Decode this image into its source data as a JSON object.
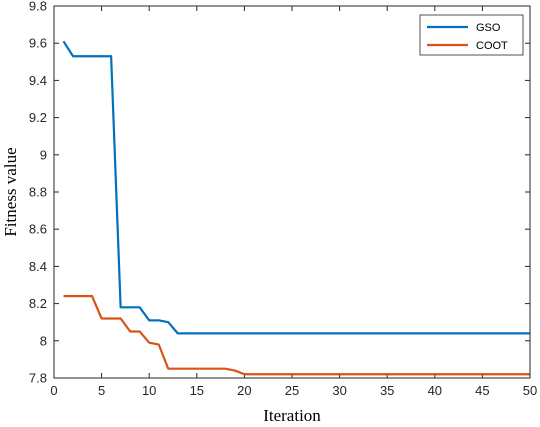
{
  "chart_data": {
    "type": "line",
    "title": "",
    "xlabel": "Iteration",
    "ylabel": "Fitness value",
    "xlim": [
      0,
      50
    ],
    "ylim": [
      7.8,
      9.8
    ],
    "xticks": [
      0,
      5,
      10,
      15,
      20,
      25,
      30,
      35,
      40,
      45,
      50
    ],
    "yticks": [
      7.8,
      8,
      8.2,
      8.4,
      8.6,
      8.8,
      9,
      9.2,
      9.4,
      9.6,
      9.8
    ],
    "xtick_labels": [
      "0",
      "5",
      "10",
      "15",
      "20",
      "25",
      "30",
      "35",
      "40",
      "45",
      "50"
    ],
    "ytick_labels": [
      "7.8",
      "8",
      "8.2",
      "8.4",
      "8.6",
      "8.8",
      "9",
      "9.2",
      "9.4",
      "9.6",
      "9.8"
    ],
    "grid": false,
    "legend_position": "top-right",
    "series": [
      {
        "name": "GSO",
        "color": "#0072BD",
        "x": [
          1,
          2,
          3,
          4,
          5,
          6,
          7,
          8,
          9,
          10,
          11,
          12,
          13,
          14,
          15,
          16,
          17,
          18,
          19,
          20,
          21,
          22,
          23,
          24,
          25,
          26,
          27,
          28,
          29,
          30,
          31,
          32,
          33,
          34,
          35,
          36,
          37,
          38,
          39,
          40,
          41,
          42,
          43,
          44,
          45,
          46,
          47,
          48,
          49,
          50
        ],
        "values": [
          9.61,
          9.53,
          9.53,
          9.53,
          9.53,
          9.53,
          8.18,
          8.18,
          8.18,
          8.11,
          8.11,
          8.1,
          8.04,
          8.04,
          8.04,
          8.04,
          8.04,
          8.04,
          8.04,
          8.04,
          8.04,
          8.04,
          8.04,
          8.04,
          8.04,
          8.04,
          8.04,
          8.04,
          8.04,
          8.04,
          8.04,
          8.04,
          8.04,
          8.04,
          8.04,
          8.04,
          8.04,
          8.04,
          8.04,
          8.04,
          8.04,
          8.04,
          8.04,
          8.04,
          8.04,
          8.04,
          8.04,
          8.04,
          8.04,
          8.04
        ]
      },
      {
        "name": "COOT",
        "color": "#D95319",
        "x": [
          1,
          2,
          3,
          4,
          5,
          6,
          7,
          8,
          9,
          10,
          11,
          12,
          13,
          14,
          15,
          16,
          17,
          18,
          19,
          20,
          21,
          22,
          23,
          24,
          25,
          26,
          27,
          28,
          29,
          30,
          31,
          32,
          33,
          34,
          35,
          36,
          37,
          38,
          39,
          40,
          41,
          42,
          43,
          44,
          45,
          46,
          47,
          48,
          49,
          50
        ],
        "values": [
          8.24,
          8.24,
          8.24,
          8.24,
          8.12,
          8.12,
          8.12,
          8.05,
          8.05,
          7.99,
          7.98,
          7.85,
          7.85,
          7.85,
          7.85,
          7.85,
          7.85,
          7.85,
          7.84,
          7.82,
          7.82,
          7.82,
          7.82,
          7.82,
          7.82,
          7.82,
          7.82,
          7.82,
          7.82,
          7.82,
          7.82,
          7.82,
          7.82,
          7.82,
          7.82,
          7.82,
          7.82,
          7.82,
          7.82,
          7.82,
          7.82,
          7.82,
          7.82,
          7.82,
          7.82,
          7.82,
          7.82,
          7.82,
          7.82,
          7.82
        ]
      }
    ]
  }
}
